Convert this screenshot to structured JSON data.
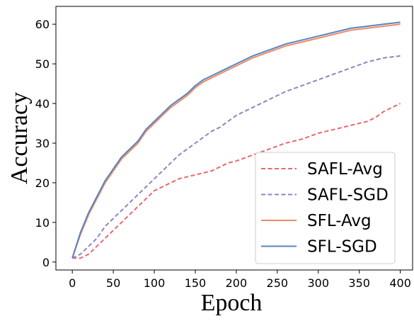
{
  "chart_data": {
    "type": "line",
    "xlabel": "Epoch",
    "ylabel": "Accuracy",
    "xlim": [
      -20,
      415
    ],
    "ylim": [
      -2,
      64.5
    ],
    "xticks": [
      0,
      50,
      100,
      150,
      200,
      250,
      300,
      350,
      400
    ],
    "yticks": [
      0,
      10,
      20,
      30,
      40,
      50,
      60
    ],
    "grid": false,
    "legend_position": "lower-right",
    "series": [
      {
        "name": "SAFL-Avg",
        "color": "#e8686f",
        "dash": "dashed",
        "x": [
          0,
          10,
          20,
          30,
          40,
          50,
          60,
          70,
          80,
          90,
          100,
          110,
          120,
          130,
          140,
          150,
          160,
          170,
          180,
          190,
          200,
          220,
          240,
          260,
          280,
          300,
          320,
          340,
          360,
          370,
          380,
          390,
          400
        ],
        "y": [
          1,
          1,
          2,
          4,
          6,
          8,
          10,
          12,
          14,
          16,
          18,
          19,
          20,
          21,
          21.5,
          22,
          22.5,
          23,
          24,
          25,
          25.5,
          27,
          28.5,
          30,
          31,
          32.5,
          33.5,
          34.5,
          35.5,
          36.5,
          38,
          39,
          40
        ]
      },
      {
        "name": "SAFL-SGD",
        "color": "#9184c0",
        "dash": "dashed",
        "x": [
          0,
          10,
          20,
          30,
          40,
          50,
          60,
          70,
          80,
          90,
          100,
          110,
          120,
          130,
          140,
          150,
          160,
          170,
          180,
          190,
          200,
          220,
          240,
          260,
          280,
          300,
          320,
          340,
          360,
          380,
          400
        ],
        "y": [
          1,
          2,
          4,
          6,
          9,
          11,
          13,
          15,
          17,
          19,
          21,
          23,
          25,
          27,
          28.5,
          30,
          31.5,
          33,
          34,
          35.5,
          37,
          39,
          41,
          43,
          44.5,
          46,
          47.5,
          49,
          50.5,
          51.5,
          52
        ]
      },
      {
        "name": "SFL-Avg",
        "color": "#f08a62",
        "dash": "solid",
        "x": [
          0,
          10,
          20,
          30,
          40,
          50,
          60,
          70,
          80,
          90,
          100,
          110,
          120,
          130,
          140,
          150,
          160,
          170,
          180,
          190,
          200,
          220,
          240,
          260,
          280,
          300,
          320,
          340,
          360,
          380,
          400
        ],
        "y": [
          1,
          7,
          12,
          16,
          20,
          23,
          26,
          28,
          30,
          33,
          35,
          37,
          39,
          40.5,
          42,
          44,
          45.5,
          46.5,
          47.5,
          48.5,
          49.5,
          51.5,
          53,
          54.5,
          55.5,
          56.5,
          57.5,
          58.5,
          59,
          59.5,
          60
        ]
      },
      {
        "name": "SFL-SGD",
        "color": "#5a84bf",
        "dash": "solid",
        "x": [
          0,
          10,
          20,
          30,
          40,
          50,
          60,
          70,
          80,
          90,
          100,
          110,
          120,
          130,
          140,
          150,
          160,
          170,
          180,
          190,
          200,
          220,
          240,
          260,
          280,
          300,
          320,
          340,
          360,
          380,
          400
        ],
        "y": [
          1,
          7.5,
          12.5,
          16.5,
          20.5,
          23.5,
          26.5,
          28.5,
          30.5,
          33.5,
          35.5,
          37.5,
          39.5,
          41,
          42.5,
          44.5,
          46,
          47,
          48,
          49,
          50,
          52,
          53.5,
          55,
          56,
          57,
          58,
          59,
          59.5,
          60,
          60.5
        ]
      }
    ]
  }
}
